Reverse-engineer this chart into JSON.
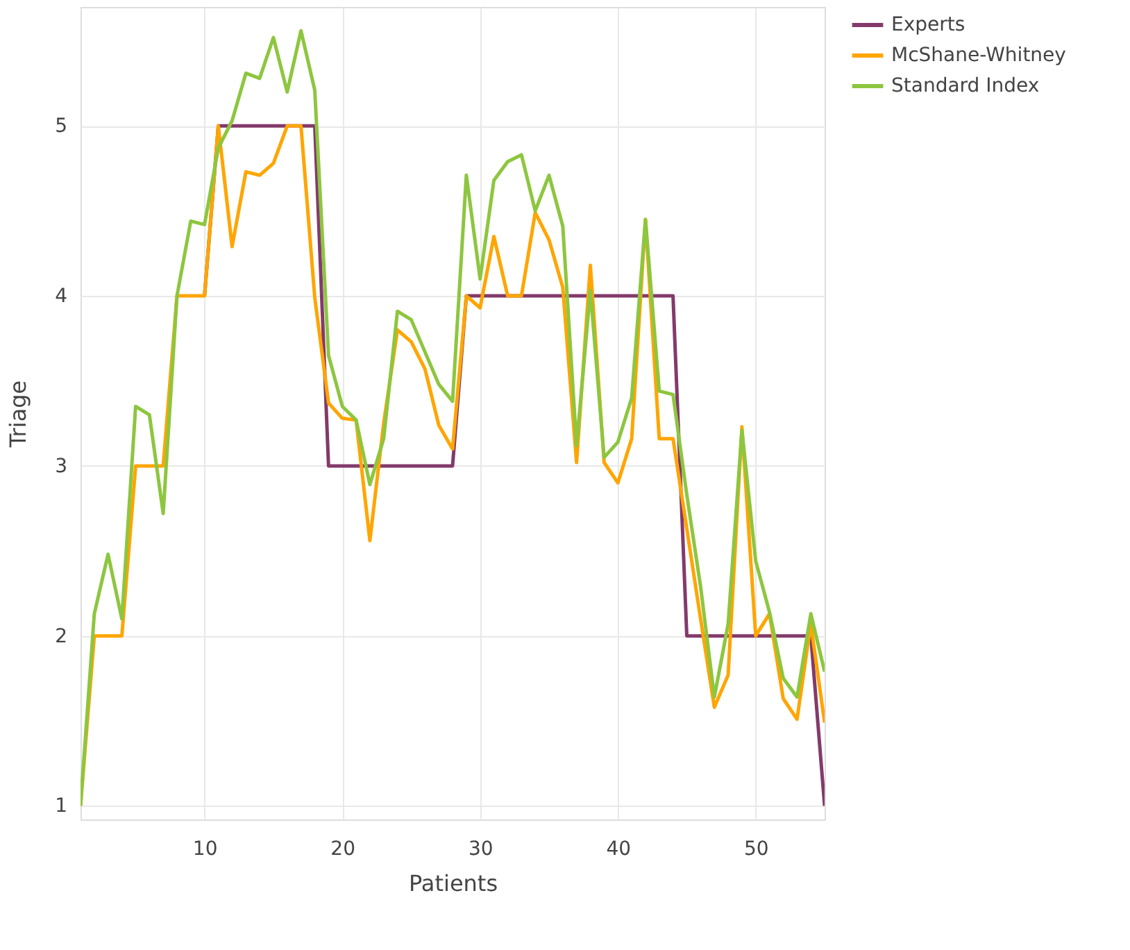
{
  "chart_data": {
    "type": "line",
    "xlabel": "Patients",
    "ylabel": "Triage",
    "x": [
      1,
      2,
      3,
      4,
      5,
      6,
      7,
      8,
      9,
      10,
      11,
      12,
      13,
      14,
      15,
      16,
      17,
      18,
      19,
      20,
      21,
      22,
      23,
      24,
      25,
      26,
      27,
      28,
      29,
      30,
      31,
      32,
      33,
      34,
      35,
      36,
      37,
      38,
      39,
      40,
      41,
      42,
      43,
      44,
      45,
      46,
      47,
      48,
      49,
      50,
      51,
      52,
      53,
      54,
      55
    ],
    "series": [
      {
        "name": "Experts",
        "color": "#833a6b",
        "values": [
          null,
          null,
          null,
          null,
          null,
          null,
          null,
          null,
          null,
          4,
          5,
          5,
          5,
          5,
          5,
          5,
          5,
          5,
          3,
          3,
          3,
          3,
          3,
          3,
          3,
          3,
          3,
          3,
          4,
          4,
          4,
          4,
          4,
          4,
          4,
          4,
          4,
          4,
          4,
          4,
          4,
          4,
          4,
          4,
          2,
          2,
          2,
          2,
          2,
          2,
          2,
          2,
          2,
          2,
          1
        ]
      },
      {
        "name": "McShane-Whitney",
        "color": "#ffa500",
        "values": [
          1,
          2,
          2,
          2,
          3,
          3,
          3,
          4,
          4,
          4,
          5,
          4.29,
          4.73,
          4.71,
          4.78,
          5,
          5,
          3.99,
          3.37,
          3.28,
          3.27,
          2.56,
          3.25,
          3.8,
          3.73,
          3.57,
          3.24,
          3.1,
          4,
          3.93,
          4.35,
          4,
          4,
          4.49,
          4.33,
          4.05,
          3.02,
          4.18,
          3.02,
          2.9,
          3.16,
          4.45,
          3.16,
          3.16,
          2.63,
          2.1,
          1.58,
          1.77,
          3.23,
          2,
          2.13,
          1.63,
          1.51,
          2.07,
          1.49
        ]
      },
      {
        "name": "Standard Index",
        "color": "#8dc63f",
        "values": [
          1,
          2.13,
          2.48,
          2.1,
          3.35,
          3.3,
          2.72,
          4,
          4.44,
          4.42,
          4.87,
          5.03,
          5.31,
          5.28,
          5.52,
          5.2,
          5.56,
          5.21,
          3.65,
          3.35,
          3.27,
          2.89,
          3.16,
          3.91,
          3.86,
          3.67,
          3.48,
          3.38,
          4.71,
          4.1,
          4.68,
          4.79,
          4.83,
          4.5,
          4.71,
          4.41,
          3.12,
          4.03,
          3.05,
          3.14,
          3.4,
          4.45,
          3.44,
          3.42,
          2.83,
          2.29,
          1.64,
          2.07,
          3.21,
          2.44,
          2.14,
          1.75,
          1.64,
          2.13,
          1.79
        ]
      }
    ],
    "xlim": [
      1,
      55
    ],
    "xticks": [
      10,
      20,
      30,
      40,
      50
    ],
    "ylim": [
      0.92,
      5.7
    ],
    "yticks": [
      1,
      2,
      3,
      4,
      5
    ],
    "grid": true,
    "legend": "top right",
    "marker": "none",
    "line_style": "solid"
  }
}
